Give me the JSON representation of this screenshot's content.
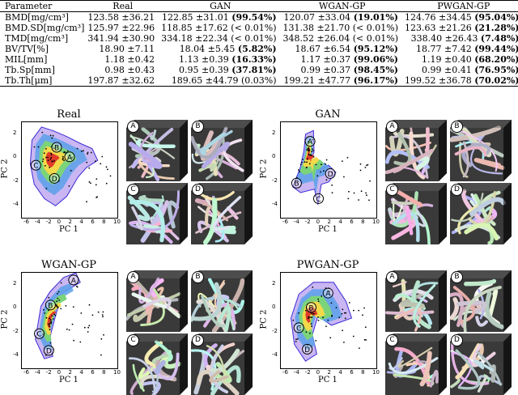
{
  "table": {
    "headers": [
      "Parameter",
      "Real",
      "GAN",
      "WGAN-GP",
      "PWGAN-GP"
    ],
    "rows": [
      {
        "param": "BMD[mg/cm³]",
        "real": "123.58 ±36.21",
        "gan": "122.85 ±31.01",
        "gan_p": "(99.54%)",
        "gan_bold": true,
        "wgan": "120.07 ±33.04",
        "wgan_p": "(19.01%)",
        "wgan_bold": true,
        "pwgan": "124.76 ±34.45",
        "pwgan_p": "(95.04%)",
        "pwgan_bold": true
      },
      {
        "param": "BMD.SD[mg/cm³]",
        "real": "125.97 ±22.96",
        "gan": "118.85 ±17.62",
        "gan_p": "(< 0.01%)",
        "gan_bold": false,
        "wgan": "131.38 ±21.70",
        "wgan_p": "(< 0.01%)",
        "wgan_bold": false,
        "pwgan": "123.63 ±21.26",
        "pwgan_p": "(21.28%)",
        "pwgan_bold": true
      },
      {
        "param": "TMD[mg/cm³]",
        "real": "341.94 ±30.90",
        "gan": "334.18 ±22.34",
        "gan_p": "(< 0.01%)",
        "gan_bold": false,
        "wgan": "348.52 ±26.04",
        "wgan_p": "(< 0.01%)",
        "wgan_bold": false,
        "pwgan": "338.40 ±26.43",
        "pwgan_p": "(7.48%)",
        "pwgan_bold": true
      },
      {
        "param": "BV/TV[%]",
        "real": "18.90 ±7.11",
        "gan": "18.04 ±5.45",
        "gan_p": "(5.82%)",
        "gan_bold": true,
        "wgan": "18.67 ±6.54",
        "wgan_p": "(95.12%)",
        "wgan_bold": true,
        "pwgan": "18.77 ±7.42",
        "pwgan_p": "(99.44%)",
        "pwgan_bold": true
      },
      {
        "param": "MIL[mm]",
        "real": "1.18 ±0.42",
        "gan": "1.13 ±0.39",
        "gan_p": "(16.33%)",
        "gan_bold": true,
        "wgan": "1.17 ±0.37",
        "wgan_p": "(99.06%)",
        "wgan_bold": true,
        "pwgan": "1.19 ±0.40",
        "pwgan_p": "(68.20%)",
        "pwgan_bold": true
      },
      {
        "param": "Tb.Sp[mm]",
        "real": "0.98 ±0.43",
        "gan": "0.95 ±0.39",
        "gan_p": "(37.81%)",
        "gan_bold": true,
        "wgan": "0.99 ±0.37",
        "wgan_p": "(98.45%)",
        "wgan_bold": true,
        "pwgan": "0.99 ±0.41",
        "pwgan_p": "(76.95%)",
        "pwgan_bold": true
      },
      {
        "param": "Tb.Th[μm]",
        "real": "197.87 ±32.62",
        "gan": "189.65 ±44.79",
        "gan_p": "(0.03%)",
        "gan_bold": false,
        "wgan": "199.21 ±47.77",
        "wgan_p": "(96.17%)",
        "wgan_bold": true,
        "pwgan": "199.52 ±36.78",
        "pwgan_p": "(70.02%)",
        "pwgan_bold": true
      }
    ]
  },
  "panels": [
    {
      "title": "Real",
      "xlabel": "PC 1",
      "ylabel": "PC 2",
      "cube_labels": [
        "A",
        "B",
        "C",
        "D"
      ]
    },
    {
      "title": "GAN",
      "xlabel": "PC 1",
      "ylabel": "PC 2",
      "cube_labels": [
        "A",
        "B",
        "C",
        "D"
      ]
    },
    {
      "title": "WGAN-GP",
      "xlabel": "PC 1",
      "ylabel": "PC 2",
      "cube_labels": [
        "A",
        "B",
        "C",
        "D"
      ]
    },
    {
      "title": "PWGAN-GP",
      "xlabel": "PC 1",
      "ylabel": "PC 2",
      "cube_labels": [
        "A",
        "B",
        "C",
        "D"
      ]
    }
  ],
  "axis": {
    "xticks": [
      "-6",
      "-4",
      "-2",
      "0",
      "2",
      "4",
      "6",
      "8",
      "10"
    ],
    "yticks": [
      "2",
      "0",
      "-2",
      "-4"
    ]
  },
  "chart_data": [
    {
      "type": "scatter",
      "title": "Real",
      "xlabel": "PC 1",
      "ylabel": "PC 2",
      "xlim": [
        -7,
        10
      ],
      "ylim": [
        -5,
        3
      ],
      "markers": {
        "A": [
          1.5,
          0.1
        ],
        "B": [
          -0.8,
          0.9
        ],
        "C": [
          -4.5,
          -0.6
        ],
        "D": [
          -1.2,
          -1.7
        ]
      }
    },
    {
      "type": "scatter",
      "title": "GAN",
      "xlabel": "PC 1",
      "ylabel": "PC 2",
      "xlim": [
        -7,
        10
      ],
      "ylim": [
        -5,
        3
      ],
      "markers": {
        "A": [
          -1.8,
          1.4
        ],
        "B": [
          -4.2,
          -2.1
        ],
        "C": [
          -0.3,
          -3.4
        ],
        "D": [
          1.8,
          -1.3
        ]
      }
    },
    {
      "type": "scatter",
      "title": "WGAN-GP",
      "xlabel": "PC 1",
      "ylabel": "PC 2",
      "xlim": [
        -7,
        10
      ],
      "ylim": [
        -5,
        3
      ],
      "markers": {
        "A": [
          2.2,
          2.4
        ],
        "B": [
          -1.9,
          0.3
        ],
        "C": [
          -3.9,
          -2.1
        ],
        "D": [
          -2.2,
          -3.5
        ]
      }
    },
    {
      "type": "scatter",
      "title": "PWGAN-GP",
      "xlabel": "PC 1",
      "ylabel": "PC 2",
      "xlim": [
        -7,
        10
      ],
      "ylim": [
        -5,
        3
      ],
      "markers": {
        "A": [
          1.4,
          1.3
        ],
        "B": [
          -1.6,
          0.1
        ],
        "C": [
          -3.8,
          -1.6
        ],
        "D": [
          -2.3,
          -3.4
        ]
      }
    }
  ],
  "colors": {
    "density_outer": "#c9b6f2",
    "density_mid": "#4b7de6",
    "density_inner": "#e23b2a",
    "point": "#000000"
  }
}
